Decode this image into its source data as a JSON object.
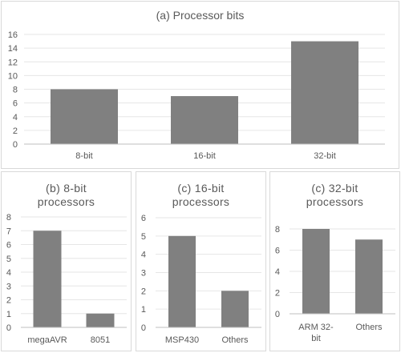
{
  "colors": {
    "bar": "#808080",
    "grid": "#e6e6e6",
    "axis": "#bfbfbf",
    "text": "#595959"
  },
  "chart_data": [
    {
      "type": "bar",
      "title": "(a) Processor bits",
      "categories": [
        "8-bit",
        "16-bit",
        "32-bit"
      ],
      "values": [
        8,
        7,
        15
      ],
      "ylim": [
        0,
        16
      ],
      "yticks": [
        0,
        2,
        4,
        6,
        8,
        10,
        12,
        14,
        16
      ],
      "grid": true
    },
    {
      "type": "bar",
      "title": "(b) 8-bit processors",
      "title_lines": [
        "(b) 8-bit",
        "processors"
      ],
      "categories": [
        "megaAVR",
        "8051"
      ],
      "values": [
        7,
        1
      ],
      "ylim": [
        0,
        8
      ],
      "yticks": [
        0,
        1,
        2,
        3,
        4,
        5,
        6,
        7,
        8
      ],
      "grid": true
    },
    {
      "type": "bar",
      "title": "(c) 16-bit processors",
      "title_lines": [
        "(c) 16-bit",
        "processors"
      ],
      "categories": [
        "MSP430",
        "Others"
      ],
      "values": [
        5,
        2
      ],
      "ylim": [
        0,
        6
      ],
      "yticks": [
        0,
        1,
        2,
        3,
        4,
        5,
        6
      ],
      "grid": true
    },
    {
      "type": "bar",
      "title": "(c) 32-bit processors",
      "title_lines": [
        "(c) 32-bit",
        "processors"
      ],
      "categories": [
        "ARM 32-bit",
        "Others"
      ],
      "category_lines": [
        [
          "ARM",
          "32-"
        ],
        [
          "Others"
        ]
      ],
      "category_lines_2": [
        [
          "bit"
        ],
        []
      ],
      "values": [
        8,
        7
      ],
      "ylim": [
        0,
        8
      ],
      "yticks": [
        0,
        2,
        4,
        6,
        8
      ],
      "grid": true
    }
  ]
}
